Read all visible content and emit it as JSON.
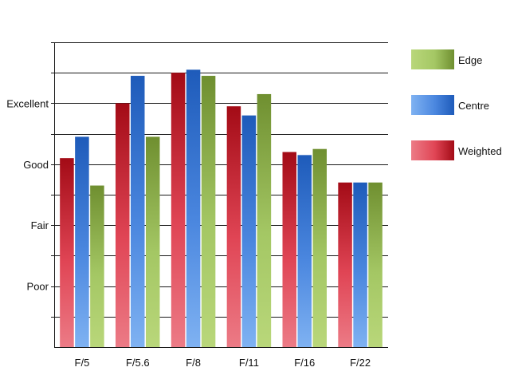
{
  "chart_data": {
    "type": "bar",
    "title": "",
    "xlabel": "",
    "ylabel": "",
    "categories": [
      "F/5",
      "F/5.6",
      "F/8",
      "F/11",
      "F/16",
      "F/22"
    ],
    "y_tick_labels": [
      {
        "label": "Poor",
        "value": 2
      },
      {
        "label": "Fair",
        "value": 4
      },
      {
        "label": "Good",
        "value": 6
      },
      {
        "label": "Excellent",
        "value": 8
      }
    ],
    "ylim": [
      0,
      10
    ],
    "grid": true,
    "legend_position": "right",
    "series": [
      {
        "name": "Weighted",
        "values": [
          6.2,
          8.0,
          9.0,
          7.9,
          6.4,
          5.4
        ],
        "colors": {
          "light": "#ec7b86",
          "mid": "#e04555",
          "dark": "#a30b16"
        }
      },
      {
        "name": "Centre",
        "values": [
          6.9,
          8.9,
          9.1,
          7.6,
          6.3,
          5.4
        ],
        "colors": {
          "light": "#7fb2f2",
          "mid": "#4b87df",
          "dark": "#1e5bba"
        }
      },
      {
        "name": "Edge",
        "values": [
          5.3,
          6.9,
          8.9,
          8.3,
          6.5,
          5.4
        ],
        "colors": {
          "light": "#b9d77a",
          "mid": "#a4c764",
          "dark": "#6f8f30"
        }
      }
    ],
    "legend_order": [
      "Edge",
      "Centre",
      "Weighted"
    ]
  }
}
